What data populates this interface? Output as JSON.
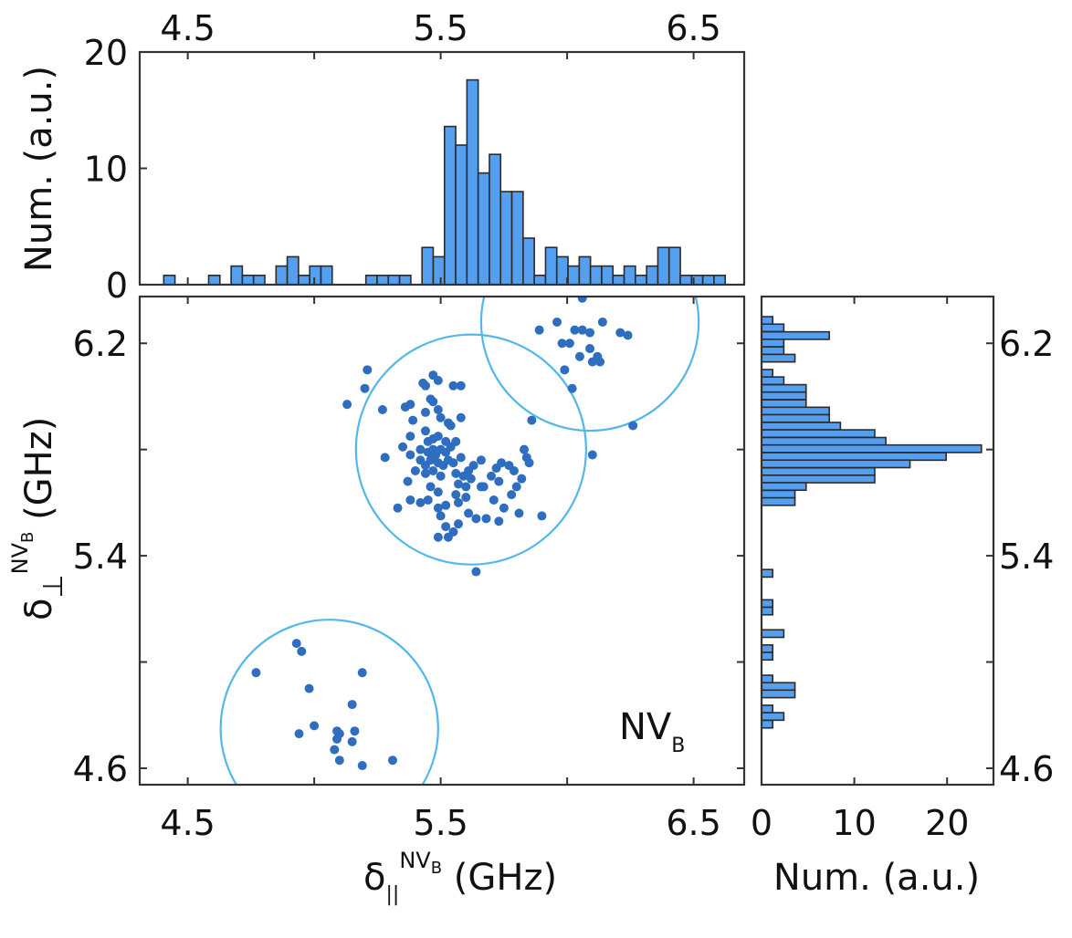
{
  "chart_data": [
    {
      "id": "top_histogram",
      "type": "bar",
      "title": "",
      "xlabel": "",
      "ylabel": "Num. (a.u.)",
      "xlim": [
        4.31,
        6.7
      ],
      "ylim": [
        0,
        20
      ],
      "xticks": [
        4.5,
        5.0,
        5.5,
        6.0,
        6.5
      ],
      "xtick_labels": [
        "4.5",
        "",
        "5.5",
        "",
        "6.5"
      ],
      "yticks": [
        0,
        10,
        20
      ],
      "ytick_labels": [
        "0",
        "10",
        "20"
      ],
      "bin_start": 4.405,
      "bin_width": 0.0444,
      "values": [
        0.8,
        0,
        0,
        0,
        0.8,
        0,
        1.6,
        0.8,
        0.8,
        0,
        1.6,
        2.4,
        0.8,
        1.6,
        1.6,
        0,
        0,
        0,
        0.8,
        0.8,
        0.8,
        0.8,
        0,
        3.2,
        2.4,
        13.6,
        12.0,
        17.6,
        9.6,
        11.2,
        8.0,
        8.0,
        4.0,
        0.8,
        3.2,
        2.4,
        1.6,
        2.4,
        1.6,
        1.6,
        0.8,
        1.6,
        0.8,
        1.6,
        3.2,
        3.2,
        0.8,
        0.8,
        0.8,
        0.8
      ],
      "colors": {
        "fill": "#559ff0",
        "edge": "#2b2b2b"
      }
    },
    {
      "id": "right_histogram",
      "type": "bar",
      "orientation": "horizontal",
      "xlabel": "Num. (a.u.)",
      "ylabel": "",
      "xlim": [
        0,
        25
      ],
      "ylim": [
        4.538,
        6.376
      ],
      "xticks": [
        0,
        10,
        20
      ],
      "xtick_labels": [
        "0",
        "10",
        "20"
      ],
      "yticks": [
        4.6,
        5.0,
        5.4,
        5.8,
        6.2
      ],
      "ytick_labels": [
        "4.6",
        "",
        "5.4",
        "",
        "6.2"
      ],
      "bins": [
        {
          "y": 6.286,
          "value": 1.2
        },
        {
          "y": 6.258,
          "value": 2.4
        },
        {
          "y": 6.229,
          "value": 7.3
        },
        {
          "y": 6.201,
          "value": 2.4
        },
        {
          "y": 6.172,
          "value": 2.4
        },
        {
          "y": 6.144,
          "value": 3.6
        },
        {
          "y": 6.087,
          "value": 1.2
        },
        {
          "y": 6.059,
          "value": 2.4
        },
        {
          "y": 6.03,
          "value": 4.8
        },
        {
          "y": 6.002,
          "value": 4.8
        },
        {
          "y": 5.973,
          "value": 4.8
        },
        {
          "y": 5.945,
          "value": 7.3
        },
        {
          "y": 5.917,
          "value": 7.3
        },
        {
          "y": 5.888,
          "value": 8.5
        },
        {
          "y": 5.86,
          "value": 12.2
        },
        {
          "y": 5.831,
          "value": 13.4
        },
        {
          "y": 5.803,
          "value": 23.7
        },
        {
          "y": 5.774,
          "value": 19.9
        },
        {
          "y": 5.746,
          "value": 16.0
        },
        {
          "y": 5.717,
          "value": 12.2
        },
        {
          "y": 5.689,
          "value": 12.2
        },
        {
          "y": 5.661,
          "value": 4.8
        },
        {
          "y": 5.632,
          "value": 3.6
        },
        {
          "y": 5.604,
          "value": 3.6
        },
        {
          "y": 5.334,
          "value": 1.2
        },
        {
          "y": 5.22,
          "value": 1.2
        },
        {
          "y": 5.192,
          "value": 1.2
        },
        {
          "y": 5.107,
          "value": 2.4
        },
        {
          "y": 5.05,
          "value": 1.2
        },
        {
          "y": 5.022,
          "value": 1.2
        },
        {
          "y": 4.936,
          "value": 1.2
        },
        {
          "y": 4.908,
          "value": 3.6
        },
        {
          "y": 4.88,
          "value": 3.6
        },
        {
          "y": 4.823,
          "value": 1.2
        },
        {
          "y": 4.795,
          "value": 2.4
        },
        {
          "y": 4.766,
          "value": 1.2
        }
      ],
      "bin_width": 0.0284,
      "colors": {
        "fill": "#559ff0",
        "edge": "#2b2b2b"
      }
    },
    {
      "id": "scatter",
      "type": "scatter",
      "xlabel": "δ∥^NVB (GHz)",
      "ylabel": "δ⊥^NVB (GHz)",
      "xlim": [
        4.31,
        6.7
      ],
      "ylim": [
        4.538,
        6.376
      ],
      "xticks": [
        4.5,
        5.0,
        5.5,
        6.0,
        6.5
      ],
      "xtick_labels": [
        "4.5",
        "",
        "5.5",
        "",
        "6.5"
      ],
      "yticks": [
        4.6,
        5.0,
        5.4,
        5.8,
        6.2
      ],
      "ytick_labels": [
        "4.6",
        "",
        "5.4",
        "",
        "6.2"
      ],
      "annotation": "NV_B",
      "colors": {
        "points": "#2e6dbf",
        "circles": "#55b6ea"
      },
      "circles": [
        {
          "cx": 6.09,
          "cy": 6.28,
          "r": 0.43
        },
        {
          "cx": 5.62,
          "cy": 5.8,
          "r": 0.455
        },
        {
          "cx": 5.06,
          "cy": 4.75,
          "r": 0.43
        }
      ],
      "points": [
        [
          6.06,
          6.37
        ],
        [
          5.96,
          6.28
        ],
        [
          5.89,
          6.25
        ],
        [
          6.03,
          6.25
        ],
        [
          6.06,
          6.25
        ],
        [
          6.14,
          6.28
        ],
        [
          6.09,
          6.24
        ],
        [
          6.21,
          6.24
        ],
        [
          6.24,
          6.23
        ],
        [
          5.98,
          6.2
        ],
        [
          6.01,
          6.2
        ],
        [
          6.09,
          6.18
        ],
        [
          6.05,
          6.15
        ],
        [
          6.12,
          6.15
        ],
        [
          6.1,
          6.13
        ],
        [
          6.13,
          6.13
        ],
        [
          5.99,
          6.1
        ],
        [
          6.02,
          6.03
        ],
        [
          6.26,
          5.89
        ],
        [
          5.86,
          5.91
        ],
        [
          5.21,
          6.1
        ],
        [
          5.2,
          6.03
        ],
        [
          5.13,
          5.97
        ],
        [
          6.1,
          5.78
        ],
        [
          5.64,
          5.34
        ],
        [
          5.43,
          6.05
        ],
        [
          5.44,
          6.04
        ],
        [
          5.47,
          6.08
        ],
        [
          5.49,
          6.06
        ],
        [
          5.55,
          6.04
        ],
        [
          5.58,
          6.04
        ],
        [
          5.38,
          5.97
        ],
        [
          5.46,
          5.99
        ],
        [
          5.47,
          5.98
        ],
        [
          5.44,
          5.94
        ],
        [
          5.5,
          5.92
        ],
        [
          5.39,
          5.91
        ],
        [
          5.27,
          5.95
        ],
        [
          5.36,
          5.96
        ],
        [
          5.49,
          5.95
        ],
        [
          5.53,
          5.9
        ],
        [
          5.54,
          5.89
        ],
        [
          5.58,
          5.92
        ],
        [
          5.44,
          5.87
        ],
        [
          5.45,
          5.83
        ],
        [
          5.47,
          5.84
        ],
        [
          5.49,
          5.85
        ],
        [
          5.52,
          5.83
        ],
        [
          5.38,
          5.85
        ],
        [
          5.35,
          5.81
        ],
        [
          5.38,
          5.78
        ],
        [
          5.42,
          5.8
        ],
        [
          5.45,
          5.79
        ],
        [
          5.47,
          5.8
        ],
        [
          5.48,
          5.78
        ],
        [
          5.5,
          5.8
        ],
        [
          5.52,
          5.79
        ],
        [
          5.54,
          5.81
        ],
        [
          5.56,
          5.83
        ],
        [
          5.42,
          5.76
        ],
        [
          5.44,
          5.74
        ],
        [
          5.46,
          5.76
        ],
        [
          5.49,
          5.75
        ],
        [
          5.51,
          5.74
        ],
        [
          5.53,
          5.76
        ],
        [
          5.55,
          5.75
        ],
        [
          5.58,
          5.77
        ],
        [
          5.28,
          5.77
        ],
        [
          5.4,
          5.72
        ],
        [
          5.44,
          5.71
        ],
        [
          5.47,
          5.72
        ],
        [
          5.5,
          5.7
        ],
        [
          5.56,
          5.71
        ],
        [
          5.59,
          5.7
        ],
        [
          5.61,
          5.72
        ],
        [
          5.63,
          5.74
        ],
        [
          5.66,
          5.76
        ],
        [
          5.37,
          5.68
        ],
        [
          5.46,
          5.66
        ],
        [
          5.49,
          5.64
        ],
        [
          5.57,
          5.67
        ],
        [
          5.6,
          5.66
        ],
        [
          5.62,
          5.69
        ],
        [
          5.66,
          5.66
        ],
        [
          5.56,
          5.63
        ],
        [
          5.38,
          5.61
        ],
        [
          5.42,
          5.6
        ],
        [
          5.45,
          5.61
        ],
        [
          5.49,
          5.58
        ],
        [
          5.52,
          5.59
        ],
        [
          5.57,
          5.6
        ],
        [
          5.6,
          5.62
        ],
        [
          5.33,
          5.58
        ],
        [
          5.68,
          5.54
        ],
        [
          5.5,
          5.55
        ],
        [
          5.52,
          5.51
        ],
        [
          5.55,
          5.49
        ],
        [
          5.57,
          5.52
        ],
        [
          5.64,
          5.54
        ],
        [
          5.71,
          5.61
        ],
        [
          5.75,
          5.58
        ],
        [
          5.78,
          5.63
        ],
        [
          5.8,
          5.66
        ],
        [
          5.82,
          5.69
        ],
        [
          5.73,
          5.68
        ],
        [
          5.79,
          5.72
        ],
        [
          5.77,
          5.74
        ],
        [
          5.85,
          5.75
        ],
        [
          5.84,
          5.77
        ],
        [
          5.83,
          5.8
        ],
        [
          5.81,
          5.56
        ],
        [
          5.73,
          5.53
        ],
        [
          5.9,
          5.55
        ],
        [
          5.74,
          5.75
        ],
        [
          5.72,
          5.73
        ],
        [
          5.7,
          5.7
        ],
        [
          5.67,
          5.66
        ],
        [
          5.61,
          5.56
        ],
        [
          5.53,
          5.47
        ],
        [
          5.49,
          5.47
        ],
        [
          4.93,
          5.07
        ],
        [
          4.95,
          5.04
        ],
        [
          4.77,
          4.96
        ],
        [
          5.19,
          4.96
        ],
        [
          4.98,
          4.9
        ],
        [
          5.15,
          4.84
        ],
        [
          5.0,
          4.76
        ],
        [
          4.94,
          4.73
        ],
        [
          5.09,
          4.74
        ],
        [
          5.1,
          4.73
        ],
        [
          5.16,
          4.74
        ],
        [
          5.09,
          4.71
        ],
        [
          5.15,
          4.7
        ],
        [
          5.08,
          4.67
        ],
        [
          5.1,
          4.63
        ],
        [
          5.31,
          4.63
        ],
        [
          5.19,
          4.61
        ]
      ]
    }
  ]
}
